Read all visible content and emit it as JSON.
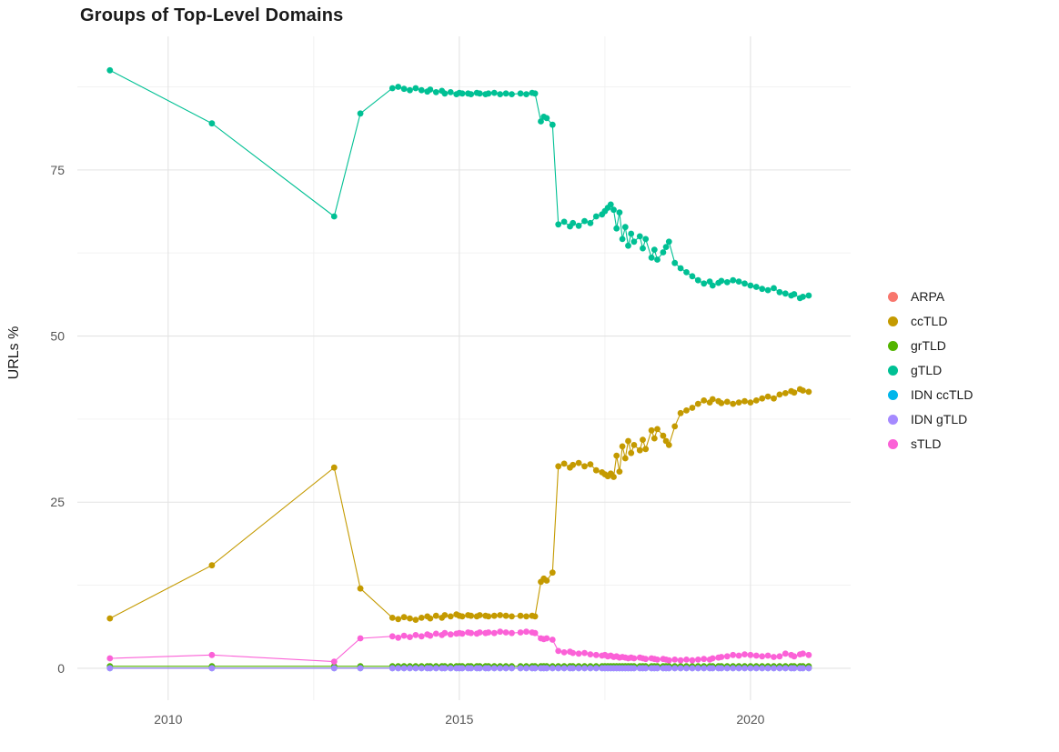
{
  "chart_data": {
    "type": "line",
    "title": "Groups of Top-Level Domains",
    "xlabel": "",
    "ylabel": "URLs %",
    "legend_position": "right",
    "xlim": [
      2008.44,
      2021.72
    ],
    "ylim": [
      -4.8,
      95.1
    ],
    "x_ticks": [
      2010,
      2015,
      2020
    ],
    "y_ticks": [
      0,
      25,
      50,
      75
    ],
    "grid": {
      "x_major": [
        2010,
        2015,
        2020
      ],
      "x_minor": [
        2012.5,
        2017.5
      ],
      "y_major": [
        0,
        25,
        50,
        75
      ],
      "y_minor": [
        12.5,
        37.5,
        62.5,
        87.5
      ]
    },
    "x": [
      2009.0,
      2010.75,
      2012.85,
      2013.3,
      2013.85,
      2013.95,
      2014.05,
      2014.15,
      2014.25,
      2014.35,
      2014.45,
      2014.5,
      2014.6,
      2014.7,
      2014.75,
      2014.85,
      2014.95,
      2015.0,
      2015.05,
      2015.15,
      2015.2,
      2015.3,
      2015.35,
      2015.45,
      2015.5,
      2015.6,
      2015.7,
      2015.8,
      2015.9,
      2016.05,
      2016.15,
      2016.25,
      2016.3,
      2016.4,
      2016.45,
      2016.5,
      2016.6,
      2016.7,
      2016.8,
      2016.9,
      2016.95,
      2017.05,
      2017.15,
      2017.25,
      2017.35,
      2017.45,
      2017.5,
      2017.55,
      2017.6,
      2017.65,
      2017.7,
      2017.75,
      2017.8,
      2017.85,
      2017.9,
      2017.95,
      2018.0,
      2018.1,
      2018.15,
      2018.2,
      2018.3,
      2018.35,
      2018.4,
      2018.5,
      2018.55,
      2018.6,
      2018.7,
      2018.8,
      2018.9,
      2019.0,
      2019.1,
      2019.2,
      2019.3,
      2019.35,
      2019.45,
      2019.5,
      2019.6,
      2019.7,
      2019.8,
      2019.9,
      2020.0,
      2020.1,
      2020.2,
      2020.3,
      2020.4,
      2020.5,
      2020.6,
      2020.7,
      2020.75,
      2020.85,
      2020.9,
      2021.0
    ],
    "series": [
      {
        "name": "ARPA",
        "color": "#F8766D",
        "constant": 0.05
      },
      {
        "name": "ccTLD",
        "color": "#C49A00",
        "values": [
          7.5,
          15.5,
          30.2,
          12.0,
          7.6,
          7.4,
          7.7,
          7.5,
          7.3,
          7.6,
          7.8,
          7.5,
          7.9,
          7.6,
          8.0,
          7.8,
          8.1,
          7.9,
          7.8,
          8.0,
          7.9,
          7.8,
          8.0,
          7.9,
          7.8,
          7.9,
          8.0,
          7.9,
          7.8,
          7.9,
          7.8,
          7.9,
          7.8,
          13.0,
          13.5,
          13.2,
          14.4,
          30.4,
          30.8,
          30.2,
          30.6,
          30.9,
          30.4,
          30.7,
          29.8,
          29.5,
          29.2,
          28.9,
          29.3,
          28.8,
          32.0,
          29.6,
          33.4,
          31.6,
          34.2,
          32.4,
          33.6,
          32.8,
          34.4,
          33.0,
          35.8,
          34.6,
          36.0,
          35.0,
          34.2,
          33.6,
          36.4,
          38.4,
          38.8,
          39.2,
          39.8,
          40.3,
          40.0,
          40.5,
          40.2,
          39.9,
          40.1,
          39.8,
          40.0,
          40.2,
          40.0,
          40.3,
          40.6,
          40.9,
          40.6,
          41.2,
          41.4,
          41.7,
          41.5,
          42.0,
          41.8,
          41.6
        ]
      },
      {
        "name": "grTLD",
        "color": "#53B400",
        "constant": 0.3
      },
      {
        "name": "gTLD",
        "color": "#00C094",
        "values": [
          90.0,
          82.0,
          68.0,
          83.5,
          87.3,
          87.5,
          87.2,
          87.0,
          87.3,
          87.0,
          86.8,
          87.1,
          86.7,
          86.9,
          86.5,
          86.7,
          86.4,
          86.6,
          86.5,
          86.5,
          86.4,
          86.6,
          86.5,
          86.4,
          86.5,
          86.6,
          86.4,
          86.5,
          86.4,
          86.5,
          86.4,
          86.6,
          86.5,
          82.3,
          83.0,
          82.8,
          81.8,
          66.8,
          67.2,
          66.5,
          67.0,
          66.6,
          67.3,
          67.0,
          68.0,
          68.3,
          68.8,
          69.3,
          69.8,
          69.0,
          66.2,
          68.6,
          64.6,
          66.4,
          63.6,
          65.4,
          64.2,
          65.0,
          63.2,
          64.6,
          61.8,
          63.0,
          61.5,
          62.6,
          63.4,
          64.2,
          61.0,
          60.2,
          59.6,
          59.0,
          58.4,
          57.9,
          58.2,
          57.6,
          58.0,
          58.3,
          58.1,
          58.4,
          58.2,
          57.9,
          57.6,
          57.4,
          57.1,
          56.9,
          57.2,
          56.6,
          56.4,
          56.1,
          56.3,
          55.7,
          55.9,
          56.1
        ]
      },
      {
        "name": "IDN ccTLD",
        "color": "#00B6EB",
        "constant": 0.02
      },
      {
        "name": "IDN gTLD",
        "color": "#A58AFF",
        "constant": 0.0
      },
      {
        "name": "sTLD",
        "color": "#FB61D7",
        "values": [
          1.5,
          2.0,
          1.0,
          4.5,
          4.8,
          4.6,
          4.9,
          4.7,
          5.0,
          4.8,
          5.1,
          4.9,
          5.2,
          5.0,
          5.3,
          5.1,
          5.2,
          5.3,
          5.2,
          5.4,
          5.3,
          5.2,
          5.4,
          5.3,
          5.4,
          5.3,
          5.5,
          5.4,
          5.3,
          5.4,
          5.5,
          5.4,
          5.3,
          4.5,
          4.4,
          4.5,
          4.3,
          2.6,
          2.4,
          2.5,
          2.3,
          2.2,
          2.3,
          2.1,
          2.0,
          1.9,
          2.0,
          1.8,
          1.9,
          1.7,
          1.8,
          1.6,
          1.7,
          1.6,
          1.5,
          1.6,
          1.5,
          1.6,
          1.5,
          1.4,
          1.5,
          1.4,
          1.3,
          1.4,
          1.3,
          1.2,
          1.3,
          1.2,
          1.3,
          1.2,
          1.3,
          1.4,
          1.3,
          1.5,
          1.6,
          1.7,
          1.8,
          2.0,
          1.9,
          2.1,
          2.0,
          1.9,
          1.8,
          1.9,
          1.7,
          1.8,
          2.2,
          2.0,
          1.8,
          2.1,
          2.2,
          2.0
        ]
      }
    ]
  }
}
